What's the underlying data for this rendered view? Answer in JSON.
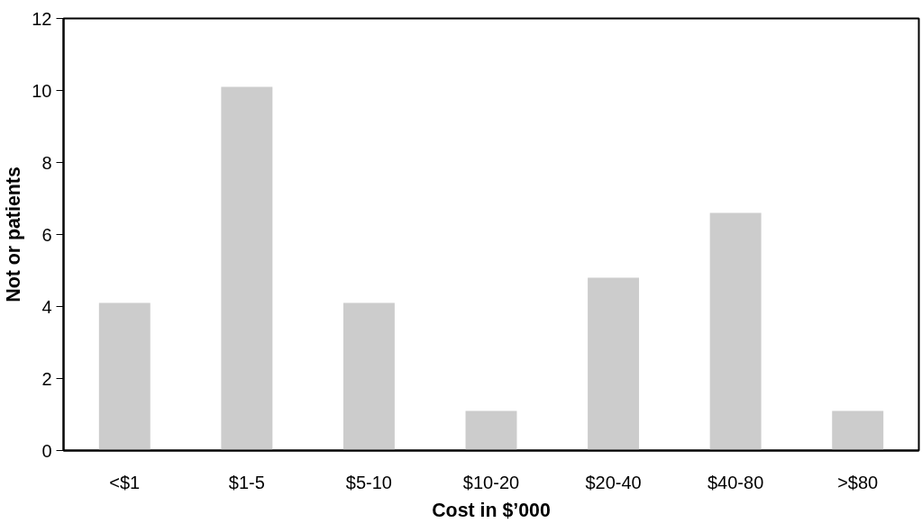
{
  "chart_data": {
    "type": "bar",
    "xlabel": "Cost in $’000",
    "ylabel": "Not or patients",
    "categories": [
      "<$1",
      "$1-5",
      "$5-10",
      "$10-20",
      "$20-40",
      "$40-80",
      ">$80"
    ],
    "values": [
      4.1,
      10.1,
      4.1,
      1.1,
      4.8,
      6.6,
      1.1
    ],
    "color": "#cccccc",
    "ylim": [
      0,
      12
    ],
    "yticks": [
      0,
      2,
      4,
      6,
      8,
      10,
      12
    ],
    "grid": false
  }
}
